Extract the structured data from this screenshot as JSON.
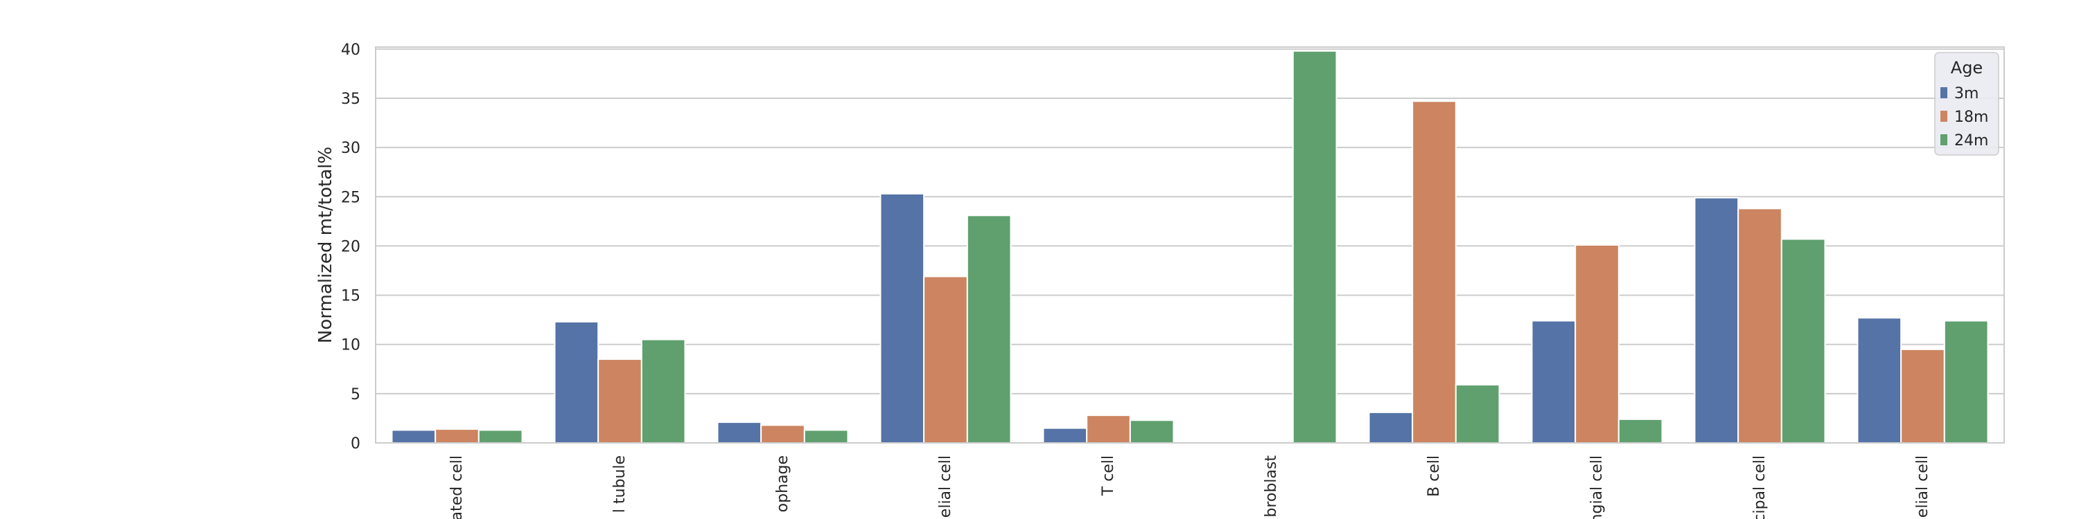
{
  "chart_data": {
    "type": "bar",
    "categories": [
      "ated cell",
      "l tubule",
      "ophage",
      "elial cell",
      "T cell",
      "broblast",
      "B cell",
      "ngial cell",
      "cipal cell",
      "elial cell"
    ],
    "series": [
      {
        "name": "3m",
        "values": [
          1.3,
          12.3,
          2.1,
          25.3,
          1.5,
          0.0,
          3.1,
          12.4,
          24.9,
          12.7
        ]
      },
      {
        "name": "18m",
        "values": [
          1.4,
          8.5,
          1.8,
          16.9,
          2.8,
          0.0,
          34.7,
          20.1,
          23.8,
          9.5
        ]
      },
      {
        "name": "24m",
        "values": [
          1.3,
          10.5,
          1.3,
          23.1,
          2.3,
          39.8,
          5.9,
          2.4,
          20.7,
          12.4
        ]
      }
    ],
    "colors": [
      "#5573a6",
      "#cc8560",
      "#5fa06e"
    ],
    "ylabel": "Normalized mt/total%",
    "xlabel": "",
    "ylim": [
      0,
      40.2
    ],
    "yticks": [
      0,
      5,
      10,
      15,
      20,
      25,
      30,
      35,
      40
    ],
    "grid": "horizontal",
    "legend": {
      "title": "Age",
      "position": "top-right"
    }
  }
}
